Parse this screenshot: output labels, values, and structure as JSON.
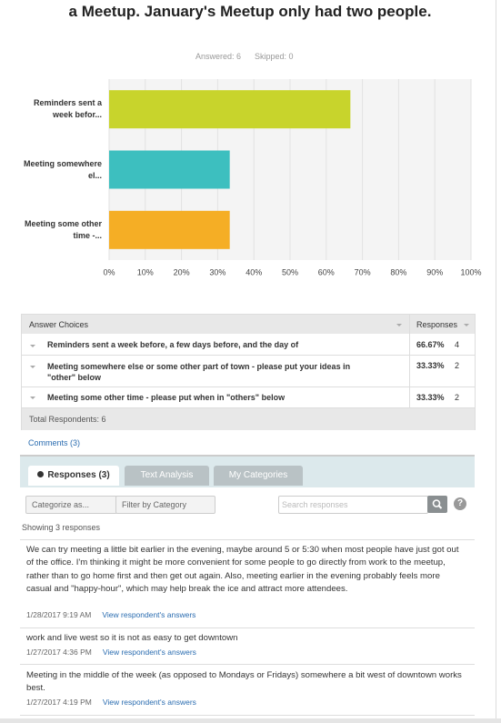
{
  "header": {
    "title": "a Meetup. January's Meetup only had two people.",
    "answered": "Answered: 6",
    "skipped": "Skipped: 0"
  },
  "chart_data": {
    "type": "hbar",
    "categories": [
      "Reminders sent a week befor...",
      "Meeting somewhere el...",
      "Meeting some other time -..."
    ],
    "values": [
      66.67,
      33.33,
      33.33
    ],
    "colors": [
      "#c8d42c",
      "#3dbfbf",
      "#f5ae25"
    ],
    "xlim": [
      0,
      100
    ],
    "xticks": [
      {
        "value": 0,
        "label": "0%"
      },
      {
        "value": 10,
        "label": "10%"
      },
      {
        "value": 20,
        "label": "20%"
      },
      {
        "value": 30,
        "label": "30%"
      },
      {
        "value": 40,
        "label": "40%"
      },
      {
        "value": 50,
        "label": "50%"
      },
      {
        "value": 60,
        "label": "60%"
      },
      {
        "value": 70,
        "label": "70%"
      },
      {
        "value": 80,
        "label": "80%"
      },
      {
        "value": 90,
        "label": "90%"
      },
      {
        "value": 100,
        "label": "100%"
      }
    ],
    "grid": true
  },
  "table": {
    "headers": [
      "Answer Choices",
      "Responses"
    ],
    "rows": [
      [
        "Reminders sent a week before, a few days before, and the day of",
        "66.67%",
        4
      ],
      [
        "Meeting somewhere else or some other part of town - please put your ideas in \"other\" below",
        "33.33%",
        2
      ],
      [
        "Meeting some other time - please put when in \"others\" below",
        "33.33%",
        2
      ]
    ],
    "total": "Total Respondents: 6"
  },
  "comments": "Comments (3)",
  "tabs": [
    "Responses (3)",
    "Text Analysis",
    "My Categories"
  ],
  "toolbar": {
    "categorize": "Categorize as...",
    "filter": "Filter by Category",
    "search": "Search responses",
    "help": "?"
  },
  "showing": "Showing 3 responses",
  "responses": [
    {
      "text": "We can try meeting a little bit earlier in the evening, maybe around 5 or 5:30 when most people have just got out of the office. I'm thinking it might be more convenient for some people to go directly from work to the meetup, rather than to go home first and then get out again. Also, meeting earlier in the evening probably feels more casual and \"happy-hour\", which may help break the ice and attract more attendees.",
      "date": "1/28/2017 9:19 AM",
      "link": "View respondent's answers"
    },
    {
      "text": "work and live west so it is not as easy to get downtown",
      "date": "1/27/2017 4:36 PM",
      "link": "View respondent's answers"
    },
    {
      "text": "Meeting in the middle of the week (as opposed to Mondays or Fridays) somewhere a bit west of downtown works best.",
      "date": "1/27/2017 4:19 PM",
      "link": "View respondent's answers"
    }
  ]
}
